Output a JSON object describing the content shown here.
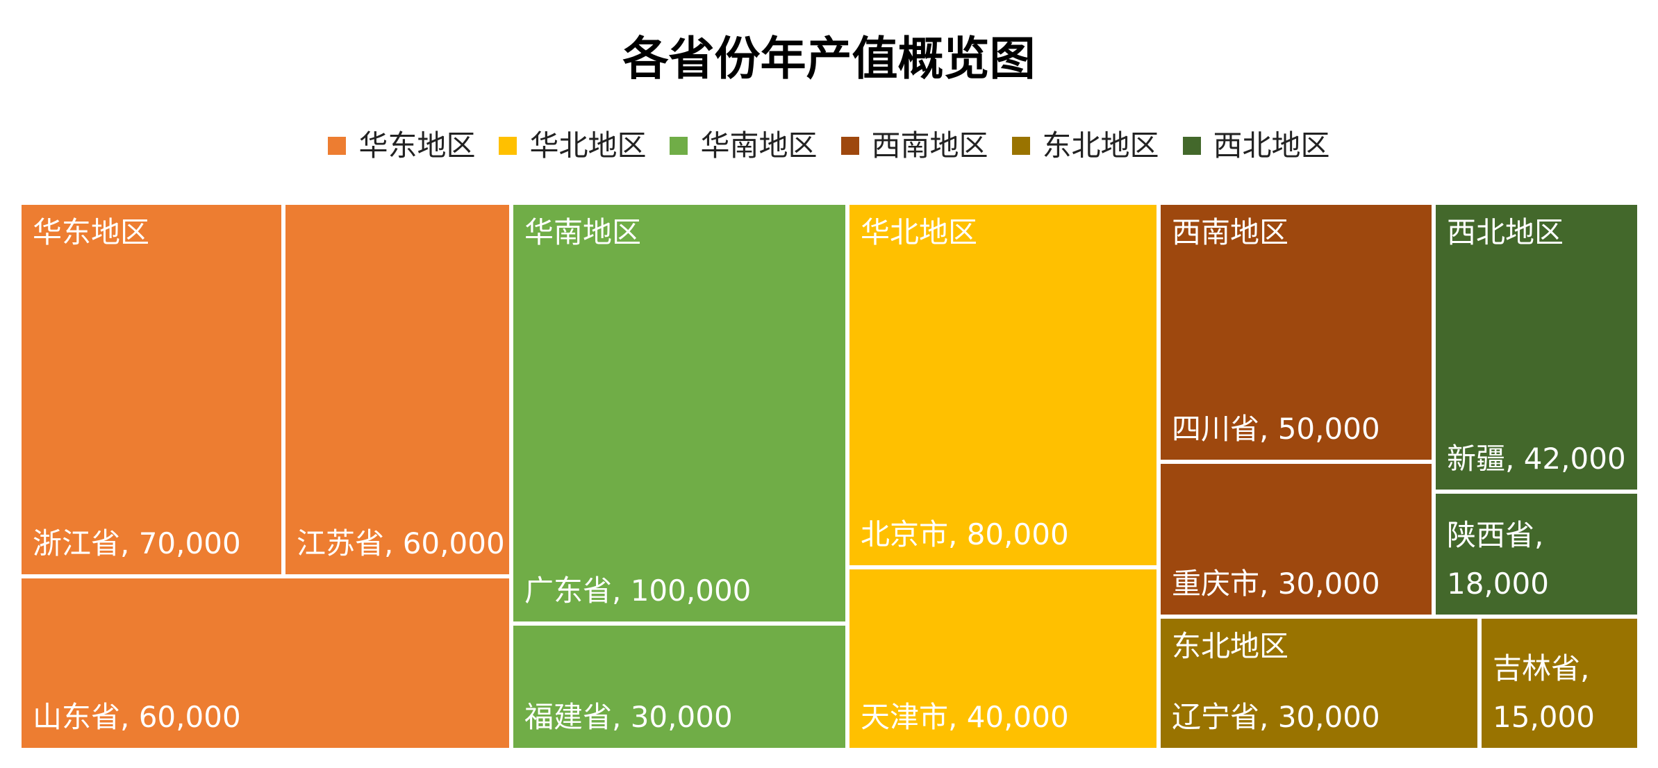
{
  "chart_data": {
    "type": "treemap",
    "title": "各省份年产值概览图",
    "legend_position": "top",
    "groups": [
      {
        "name": "华东地区",
        "color": "#ED7D31",
        "items": [
          {
            "name": "浙江省",
            "value": 70000,
            "label": "浙江省, 70,000"
          },
          {
            "name": "江苏省",
            "value": 60000,
            "label": "江苏省, 60,000"
          },
          {
            "name": "山东省",
            "value": 60000,
            "label": "山东省, 60,000"
          }
        ]
      },
      {
        "name": "华南地区",
        "color": "#70AD47",
        "items": [
          {
            "name": "广东省",
            "value": 100000,
            "label": "广东省, 100,000"
          },
          {
            "name": "福建省",
            "value": 30000,
            "label": "福建省, 30,000"
          }
        ]
      },
      {
        "name": "华北地区",
        "color": "#FFC000",
        "items": [
          {
            "name": "北京市",
            "value": 80000,
            "label": "北京市, 80,000"
          },
          {
            "name": "天津市",
            "value": 40000,
            "label": "天津市, 40,000"
          }
        ]
      },
      {
        "name": "西南地区",
        "color": "#9E480E",
        "items": [
          {
            "name": "四川省",
            "value": 50000,
            "label": "四川省, 50,000"
          },
          {
            "name": "重庆市",
            "value": 30000,
            "label": "重庆市, 30,000"
          }
        ]
      },
      {
        "name": "西北地区",
        "color": "#43682B",
        "items": [
          {
            "name": "新疆",
            "value": 42000,
            "label": "新疆, 42,000"
          },
          {
            "name": "陕西省",
            "value": 18000,
            "label": [
              "陕西省,",
              "18,000"
            ]
          }
        ]
      },
      {
        "name": "东北地区",
        "color": "#997300",
        "items": [
          {
            "name": "辽宁省",
            "value": 30000,
            "label": "辽宁省, 30,000"
          },
          {
            "name": "吉林省",
            "value": 15000,
            "label": [
              "吉林省,",
              "15,000"
            ]
          }
        ]
      }
    ],
    "legend": [
      {
        "name": "华东地区",
        "color": "#ED7D31"
      },
      {
        "name": "华北地区",
        "color": "#FFC000"
      },
      {
        "name": "华南地区",
        "color": "#70AD47"
      },
      {
        "name": "西南地区",
        "color": "#9E480E"
      },
      {
        "name": "东北地区",
        "color": "#997300"
      },
      {
        "name": "西北地区",
        "color": "#43682B"
      }
    ]
  }
}
